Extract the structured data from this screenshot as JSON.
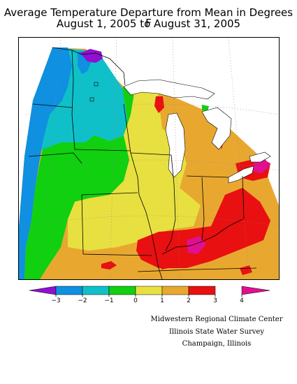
{
  "title": {
    "line1": "Average Temperature Departure from Mean in Degrees F",
    "line2": "August 1, 2005 to August 31, 2005"
  },
  "legend": {
    "ticks": [
      "−3",
      "−2",
      "−1",
      "0",
      "1",
      "2",
      "3",
      "4"
    ],
    "colors": [
      "#9010d0",
      "#1090e0",
      "#10c0c8",
      "#10d010",
      "#e8e040",
      "#e8a830",
      "#e81010",
      "#e01090"
    ]
  },
  "credits": [
    "Midwestern Regional Climate Center",
    "Illinois State Water Survey",
    "Champaign, Illinois"
  ]
}
